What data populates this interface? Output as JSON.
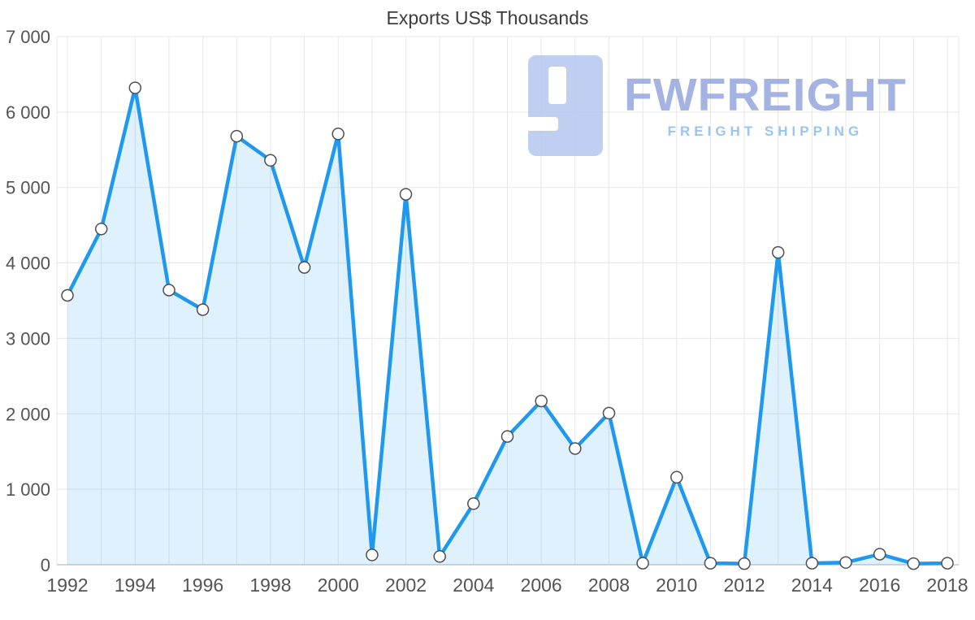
{
  "chart": {
    "title": "Exports US$ Thousands"
  },
  "watermark": {
    "brand": "FWFREIGHT",
    "tagline": "FREIGHT SHIPPING",
    "icon_color": "#b4c6ef"
  },
  "chart_data": {
    "type": "area",
    "title": "Exports US$ Thousands",
    "x": [
      1992,
      1993,
      1994,
      1995,
      1996,
      1997,
      1998,
      1999,
      2000,
      2001,
      2002,
      2003,
      2004,
      2005,
      2006,
      2007,
      2008,
      2009,
      2010,
      2011,
      2012,
      2013,
      2014,
      2015,
      2016,
      2017,
      2018
    ],
    "values": [
      3570,
      4450,
      6320,
      3640,
      3380,
      5680,
      5360,
      3940,
      5710,
      130,
      4910,
      110,
      810,
      1700,
      2170,
      1540,
      2010,
      20,
      1160,
      20,
      15,
      4140,
      20,
      30,
      140,
      15,
      20
    ],
    "xlabel": "",
    "ylabel": "",
    "ylim": [
      0,
      7000
    ],
    "ytick_step": 1000,
    "xlabel_every": 2,
    "grid": true,
    "legend": false,
    "line_color": "#1f99f0",
    "fill_color": "rgba(31,153,240,0.14)",
    "marker_fill": "#ffffff",
    "marker_stroke": "#4f4f4f",
    "grid_color": "#e7e7e7",
    "axis_line_color": "#c9c9c9",
    "axis_text_color": "#545454",
    "title_color": "#3d3d3d"
  }
}
